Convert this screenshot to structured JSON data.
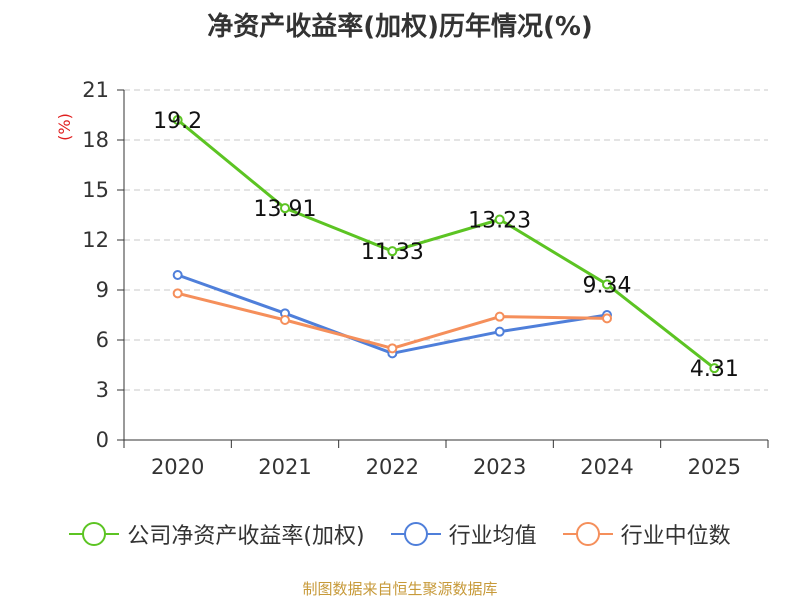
{
  "chart_data": {
    "type": "line",
    "title": "净资产收益率(加权)历年情况(%)",
    "ylabel": "(%)",
    "xlabel": "",
    "categories": [
      "2020",
      "2021",
      "2022",
      "2023",
      "2024",
      "2025"
    ],
    "ylim": [
      0,
      21
    ],
    "yticks": [
      0,
      3,
      6,
      9,
      12,
      15,
      18,
      21
    ],
    "grid": true,
    "legend_position": "bottom",
    "series": [
      {
        "name": "公司净资产收益率(加权)",
        "color": "#5cc423",
        "values": [
          19.2,
          13.91,
          11.33,
          13.23,
          9.34,
          4.31
        ],
        "labels": [
          "19.2",
          "13.91",
          "11.33",
          "13.23",
          "9.34",
          "4.31"
        ],
        "show_labels": true
      },
      {
        "name": "行业均值",
        "color": "#4f7fda",
        "values": [
          9.9,
          7.6,
          5.2,
          6.5,
          7.5,
          null
        ],
        "show_labels": false
      },
      {
        "name": "行业中位数",
        "color": "#f58f5b",
        "values": [
          8.8,
          7.2,
          5.5,
          7.4,
          7.3,
          null
        ],
        "show_labels": false
      }
    ]
  },
  "footer": {
    "source": "制图数据来自恒生聚源数据库"
  }
}
